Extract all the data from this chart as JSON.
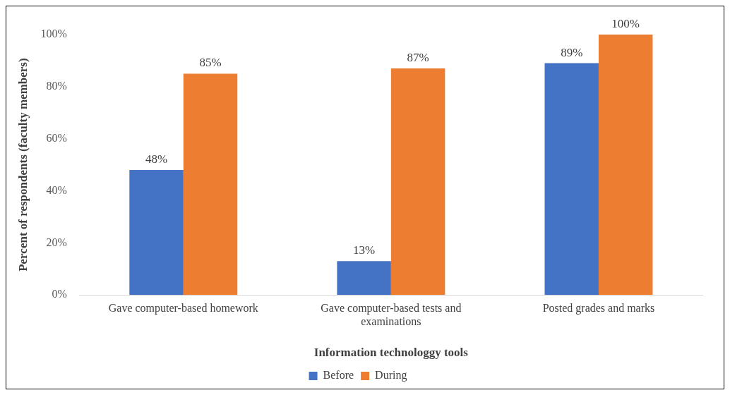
{
  "chart_data": {
    "type": "bar",
    "xlabel": "Information technologgy tools",
    "ylabel": "Percent of respondents (faculty members)",
    "categories": [
      "Gave computer-based homework",
      "Gave computer-based tests and examinations",
      "Posted grades and marks"
    ],
    "series": [
      {
        "name": "Before",
        "color": "#4472c4",
        "values": [
          48,
          13,
          89
        ],
        "value_labels": [
          "48%",
          "13%",
          "89%"
        ]
      },
      {
        "name": "During",
        "color": "#ed7d31",
        "values": [
          85,
          87,
          100
        ],
        "value_labels": [
          "85%",
          "87%",
          "100%"
        ]
      }
    ],
    "ylim": [
      0,
      100
    ],
    "yticks": [
      {
        "value": 0,
        "label": "0%"
      },
      {
        "value": 20,
        "label": "20%"
      },
      {
        "value": 40,
        "label": "40%"
      },
      {
        "value": 60,
        "label": "60%"
      },
      {
        "value": 80,
        "label": "80%"
      },
      {
        "value": 100,
        "label": "100%"
      }
    ],
    "grid": false,
    "legend": "bottom"
  }
}
